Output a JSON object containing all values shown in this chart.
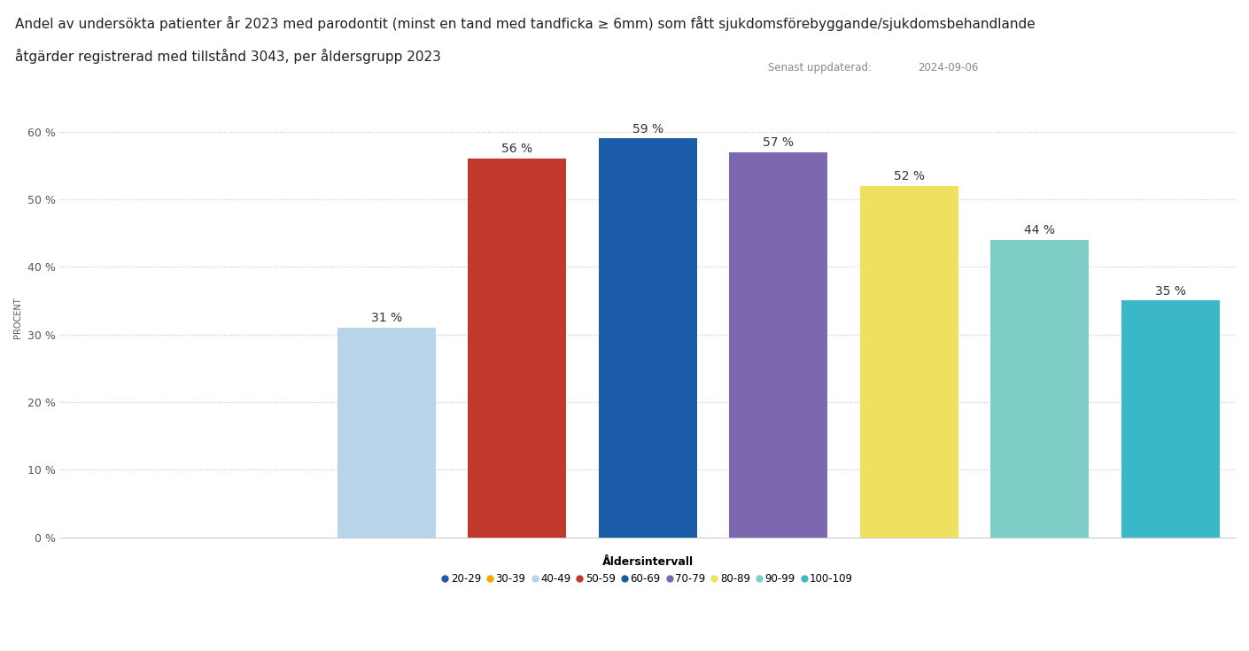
{
  "title_line1": "Andel av undersökta patienter år 2023 med parodontit (minst en tand med tandficka ≥ 6mm) som fått sjukdomsförebyggande/sjukdomsbehandlande",
  "title_line2": "åtgärder registrerad med tillstånd 3043, per åldersgrupp 2023",
  "subtitle_date_label": "Senast uppdaterad:",
  "subtitle_date": "2024-09-06",
  "ylabel": "PROCENT",
  "xlabel": "Åldersintervall",
  "legend_labels": [
    "20-29",
    "30-39",
    "40-49",
    "50-59",
    "60-69",
    "70-79",
    "80-89",
    "90-99",
    "100-109"
  ],
  "values": [
    0,
    0,
    31,
    56,
    59,
    57,
    52,
    44,
    35
  ],
  "bar_colors": [
    "#1a5ca8",
    "#f5a800",
    "#b8d4e8",
    "#c0392b",
    "#1a5ca8",
    "#7b68ae",
    "#f0e060",
    "#7ecfc8",
    "#3ab8c8"
  ],
  "legend_colors": [
    "#1a5ca8",
    "#f5a800",
    "#b8d4e8",
    "#c0392b",
    "#1a5ca8",
    "#7b68ae",
    "#f0e060",
    "#7ecfc8",
    "#3ab8c8"
  ],
  "ylim": [
    0,
    65
  ],
  "yticks": [
    0,
    10,
    20,
    30,
    40,
    50,
    60
  ],
  "ytick_labels": [
    "0 %",
    "10 %",
    "20 %",
    "30 %",
    "40 %",
    "50 %",
    "60 %"
  ],
  "background_color": "#ffffff",
  "title_fontsize": 11,
  "tick_fontsize": 9,
  "annotation_fontsize": 10
}
